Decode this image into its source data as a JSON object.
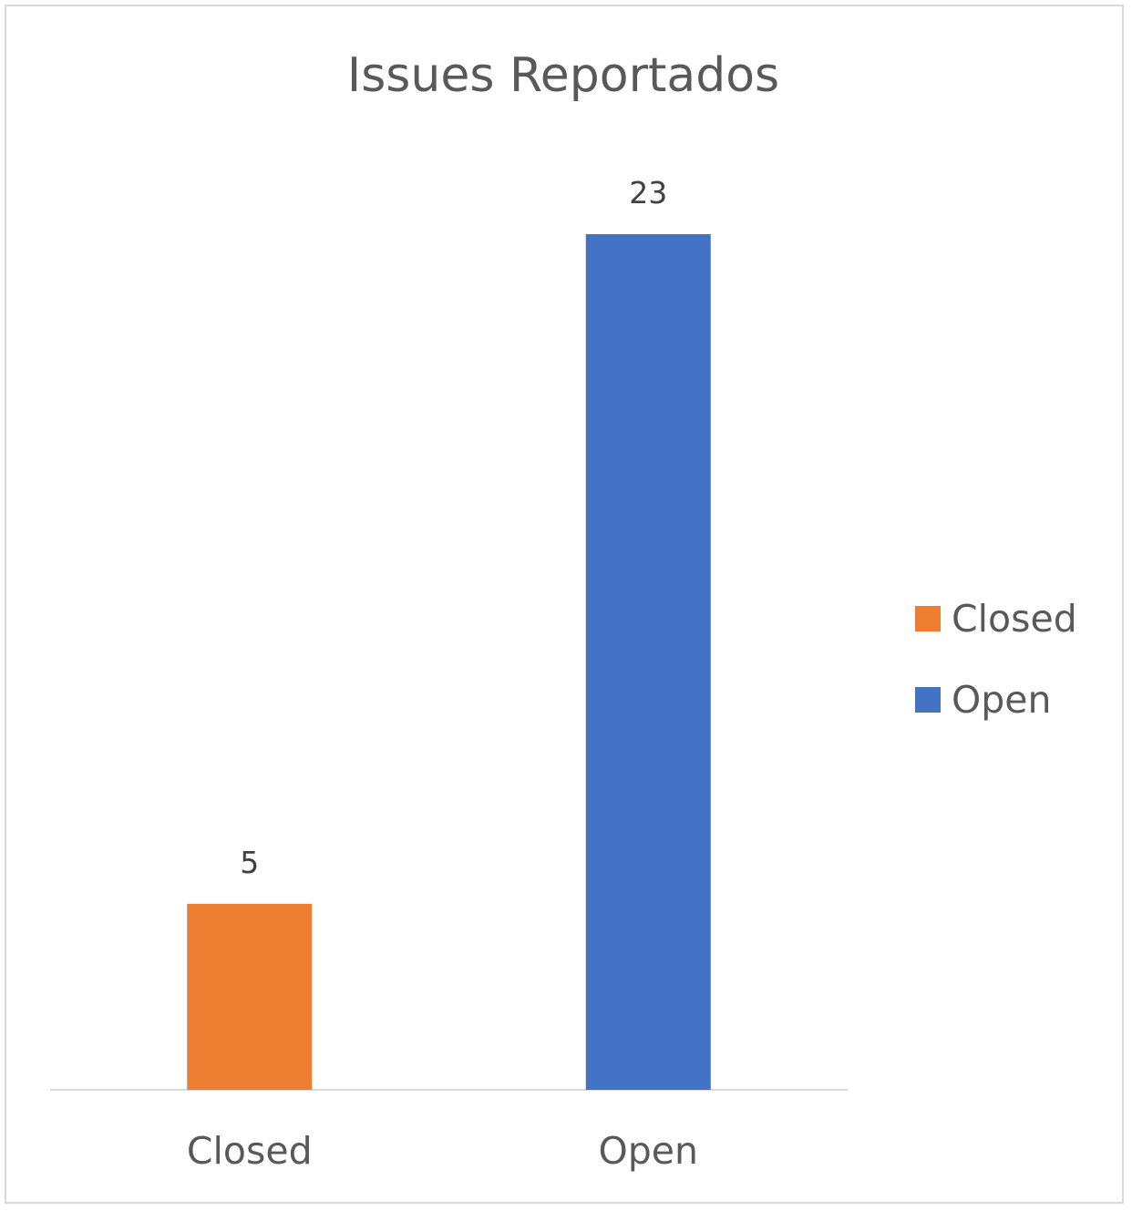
{
  "chart_data": {
    "type": "bar",
    "title": "Issues Reportados",
    "xlabel": "",
    "ylabel": "",
    "categories": [
      "Closed",
      "Open"
    ],
    "series": [
      {
        "name": "Closed",
        "values": [
          5,
          null
        ],
        "color": "#ED7D31"
      },
      {
        "name": "Open",
        "values": [
          null,
          23
        ],
        "color": "#4472C4"
      }
    ],
    "ylim": [
      0,
      23
    ],
    "grid": false,
    "legend_position": "right"
  }
}
